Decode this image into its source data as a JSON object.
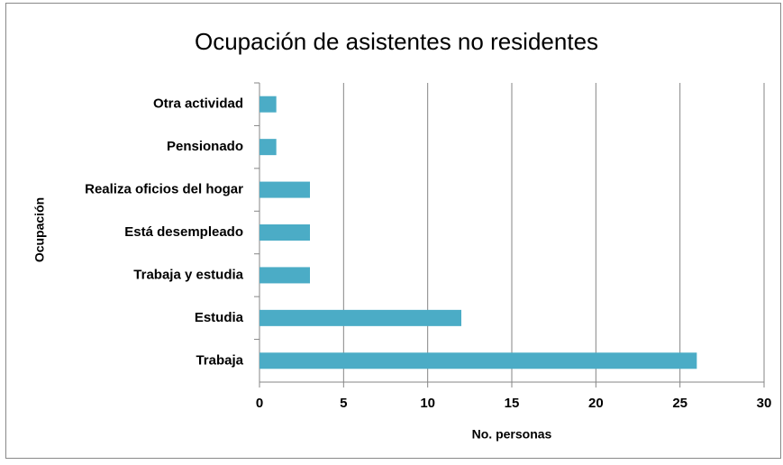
{
  "chart_data": {
    "type": "bar",
    "orientation": "horizontal",
    "title": "Ocupación de asistentes no residentes",
    "x_label": "No.  personas",
    "y_label": "Ocupación",
    "categories": [
      "Otra actividad",
      "Pensionado",
      "Realiza oficios del hogar",
      "Está desempleado",
      "Trabaja y estudia",
      "Estudia",
      "Trabaja"
    ],
    "values": [
      1,
      1,
      3,
      3,
      3,
      12,
      26
    ],
    "color": "#4bacc6",
    "xlim": [
      0,
      30
    ],
    "xticks": [
      0,
      5,
      10,
      15,
      20,
      25,
      30
    ],
    "grid": true
  }
}
